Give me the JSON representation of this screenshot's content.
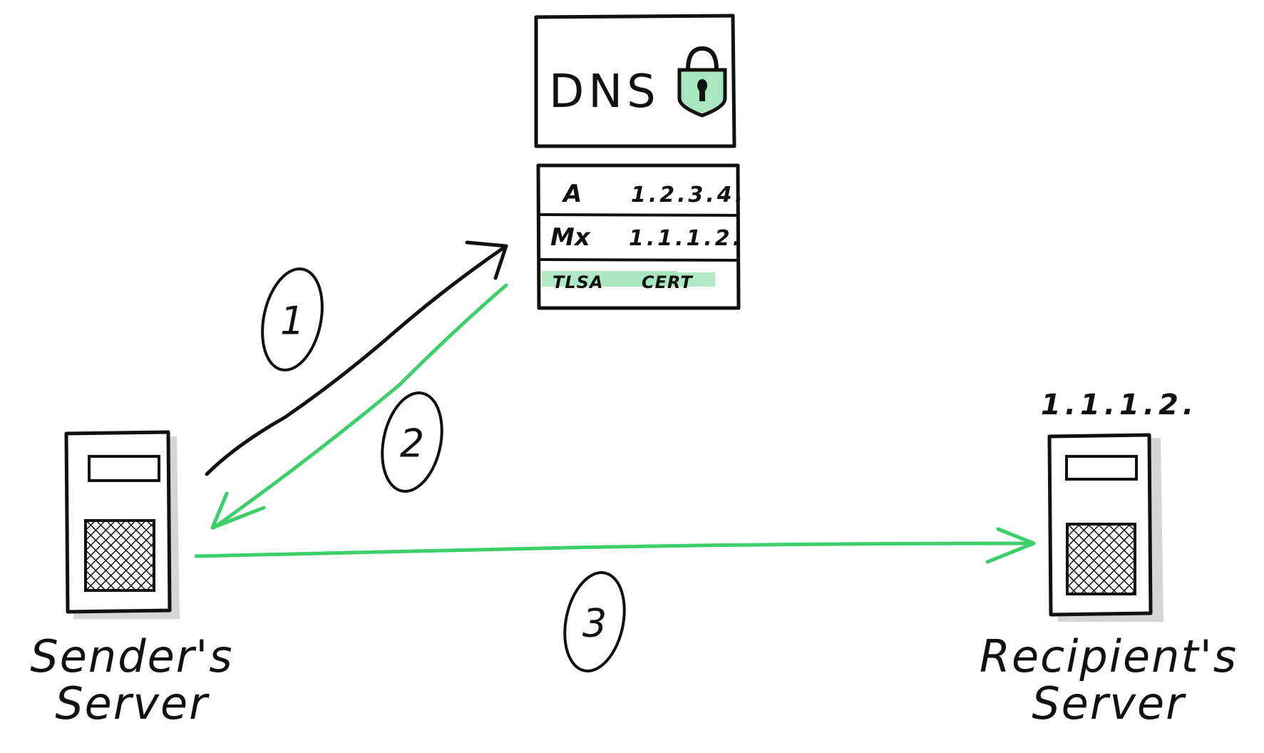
{
  "dns": {
    "title": "DNS",
    "icon": "padlock-icon",
    "records": [
      {
        "type": "A",
        "value": "1.2.3.4.",
        "highlight": false
      },
      {
        "type": "Mx",
        "value": "1.1.1.2.",
        "highlight": false
      },
      {
        "type": "TLSA",
        "value": "CERT",
        "highlight": true
      }
    ]
  },
  "sender": {
    "label_line1": "Sender's",
    "label_line2": "Server",
    "icon": "server-icon"
  },
  "recipient": {
    "label_line1": "Recipient's",
    "label_line2": "Server",
    "ip": "1.1.1.2.",
    "icon": "server-icon"
  },
  "steps": [
    "1",
    "2",
    "3"
  ],
  "colors": {
    "ink": "#111111",
    "green": "#3ccf6a",
    "green_fill": "#a8e6bf",
    "server_shadow": "#d6d6d6"
  }
}
